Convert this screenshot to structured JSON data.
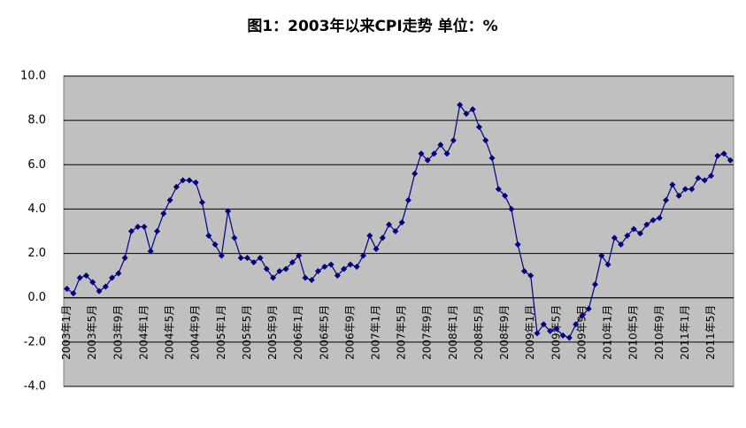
{
  "chart_data": {
    "type": "line",
    "title": "图1：2003年以来CPI走势 单位：%",
    "categories": [
      "2003年1月",
      null,
      null,
      null,
      "2003年5月",
      null,
      null,
      null,
      "2003年9月",
      null,
      null,
      null,
      "2004年1月",
      null,
      null,
      null,
      "2004年5月",
      null,
      null,
      null,
      "2004年9月",
      null,
      null,
      null,
      "2005年1月",
      null,
      null,
      null,
      "2005年5月",
      null,
      null,
      null,
      "2005年9月",
      null,
      null,
      null,
      "2006年1月",
      null,
      null,
      null,
      "2006年5月",
      null,
      null,
      null,
      "2006年9月",
      null,
      null,
      null,
      "2007年1月",
      null,
      null,
      null,
      "2007年5月",
      null,
      null,
      null,
      "2007年9月",
      null,
      null,
      null,
      "2008年1月",
      null,
      null,
      null,
      "2008年5月",
      null,
      null,
      null,
      "2008年9月",
      null,
      null,
      null,
      "2009年1月",
      null,
      null,
      null,
      "2009年5月",
      null,
      null,
      null,
      "2009年9月",
      null,
      null,
      null,
      "2010年1月",
      null,
      null,
      null,
      "2010年5月",
      null,
      null,
      null,
      "2010年9月",
      null,
      null,
      null,
      "2011年1月",
      null,
      null,
      null,
      "2011年5月",
      null,
      null,
      null
    ],
    "series": [
      {
        "color": "#000080",
        "values": [
          0.4,
          0.2,
          0.9,
          1.0,
          0.7,
          0.3,
          0.5,
          0.9,
          1.1,
          1.8,
          3.0,
          3.2,
          3.2,
          2.1,
          3.0,
          3.8,
          4.4,
          5.0,
          5.3,
          5.3,
          5.2,
          4.3,
          2.8,
          2.4,
          1.9,
          3.9,
          2.7,
          1.8,
          1.8,
          1.6,
          1.8,
          1.3,
          0.9,
          1.2,
          1.3,
          1.6,
          1.9,
          0.9,
          0.8,
          1.2,
          1.4,
          1.5,
          1.0,
          1.3,
          1.5,
          1.4,
          1.9,
          2.8,
          2.2,
          2.7,
          3.3,
          3.0,
          3.4,
          4.4,
          5.6,
          6.5,
          6.2,
          6.5,
          6.9,
          6.5,
          7.1,
          8.7,
          8.3,
          8.5,
          7.7,
          7.1,
          6.3,
          4.9,
          4.6,
          4.0,
          2.4,
          1.2,
          1.0,
          -1.6,
          -1.2,
          -1.5,
          -1.4,
          -1.7,
          -1.8,
          -1.2,
          -0.8,
          -0.5,
          0.6,
          1.9,
          1.5,
          2.7,
          2.4,
          2.8,
          3.1,
          2.9,
          3.3,
          3.5,
          3.6,
          4.4,
          5.1,
          4.6,
          4.9,
          4.9,
          5.4,
          5.3,
          5.5,
          6.4,
          6.5,
          6.2
        ]
      }
    ],
    "ylim": [
      -4,
      10
    ],
    "yticks": [
      {
        "value": -4,
        "label": "-4.0"
      },
      {
        "value": -2,
        "label": "-2.0"
      },
      {
        "value": 0,
        "label": "0.0"
      },
      {
        "value": 2,
        "label": "2.0"
      },
      {
        "value": 4,
        "label": "4.0"
      },
      {
        "value": 6,
        "label": "6.0"
      },
      {
        "value": 8,
        "label": "8.0"
      },
      {
        "value": 10,
        "label": "10.0"
      }
    ],
    "grid": true,
    "background": "#c0c0c0"
  }
}
